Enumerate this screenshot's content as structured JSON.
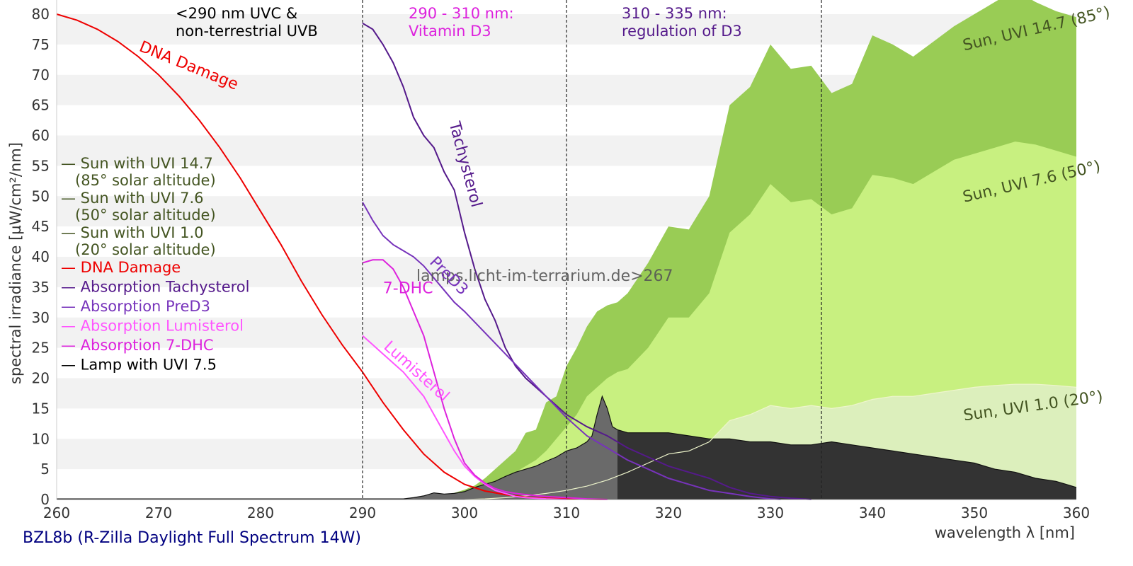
{
  "chart_data": {
    "type": "area",
    "xlabel": "wavelength λ [nm]",
    "ylabel": "spectral irradiance [µW/cm²/nm]",
    "xlim": [
      260,
      360
    ],
    "ylim": [
      0,
      80
    ],
    "x_ticks": [
      260,
      270,
      280,
      290,
      300,
      310,
      320,
      330,
      340,
      350,
      360
    ],
    "y_ticks": [
      0,
      5,
      10,
      15,
      20,
      25,
      30,
      35,
      40,
      45,
      50,
      55,
      60,
      65,
      70,
      75,
      80
    ],
    "grid": "horizontal bands",
    "legend_position": "left",
    "caption": "BZL8b (R-Zilla Daylight Full Spectrum 14W)",
    "watermark": "lamps.licht-im-terrarium.de>267",
    "colors": {
      "sun_14_7": "#99cc55",
      "sun_7_6": "#c8f080",
      "sun_1_0": "#dcefbc",
      "dna": "#ee0000",
      "tachysterol": "#551a8b",
      "pred3": "#7733bb",
      "lumisterol": "#ff55ff",
      "dhc": "#dd22dd",
      "lamp": "#333333",
      "lamp_light": "#6a6a6a",
      "legend_sun": "#445522",
      "caption": "#000080"
    },
    "regions": [
      {
        "x": 290,
        "label": "<290 nm UVC &\nnon-terrestrial UVB",
        "color": "#000000"
      },
      {
        "x": 310,
        "label": "290 - 310 nm:\nVitamin D3",
        "color": "#dd22dd"
      },
      {
        "x": 335,
        "label": "310 - 335 nm:\nregulation of D3",
        "color": "#551a8b"
      }
    ],
    "legend": [
      {
        "text": "— Sun with UVI 14.7\n   (85° solar altitude)",
        "color": "#445522"
      },
      {
        "text": "— Sun with UVI 7.6\n   (50° solar altitude)",
        "color": "#445522"
      },
      {
        "text": "— Sun with UVI 1.0\n   (20° solar altitude)",
        "color": "#445522"
      },
      {
        "text": "— DNA Damage",
        "color": "#ee0000"
      },
      {
        "text": "— Absorption Tachysterol",
        "color": "#551a8b"
      },
      {
        "text": "— Absorption PreD3",
        "color": "#7733bb"
      },
      {
        "text": "— Absorption Lumisterol",
        "color": "#ff55ff"
      },
      {
        "text": "— Absorption 7-DHC",
        "color": "#dd22dd"
      },
      {
        "text": "— Lamp with UVI 7.5",
        "color": "#000000"
      }
    ],
    "annotations": [
      {
        "text": "DNA Damage",
        "x": 268,
        "y": 74,
        "rotate": 22,
        "color": "#ee0000"
      },
      {
        "text": "Tachysterol",
        "x": 298.5,
        "y": 62,
        "rotate": 75,
        "color": "#551a8b"
      },
      {
        "text": "PreD3",
        "x": 296.5,
        "y": 39,
        "rotate": 45,
        "color": "#7733bb"
      },
      {
        "text": "7-DHC",
        "x": 292,
        "y": 34,
        "rotate": 0,
        "color": "#dd22dd"
      },
      {
        "text": "Lumisterol",
        "x": 292,
        "y": 25,
        "rotate": 42,
        "color": "#ff55ff"
      },
      {
        "text": "Sun, UVI 14.7 (85°)",
        "x": 349,
        "y": 74,
        "rotate": -13,
        "color": "#445522"
      },
      {
        "text": "Sun, UVI 7.6 (50°)",
        "x": 349,
        "y": 49,
        "rotate": -13,
        "color": "#445522"
      },
      {
        "text": "Sun, UVI 1.0 (20°)",
        "x": 349,
        "y": 13,
        "rotate": -8,
        "color": "#445522"
      }
    ],
    "series": [
      {
        "name": "Sun with UVI 14.7",
        "kind": "area",
        "x": [
          294,
          295,
          296,
          297,
          298,
          299,
          300,
          301,
          302,
          303,
          304,
          305,
          306,
          307,
          308,
          309,
          310,
          311,
          312,
          313,
          314,
          315,
          316,
          318,
          320,
          322,
          324,
          326,
          328,
          330,
          332,
          334,
          336,
          338,
          340,
          342,
          344,
          346,
          348,
          350,
          352,
          354,
          356,
          358,
          360
        ],
        "y": [
          0,
          0.1,
          0.2,
          0.4,
          0.7,
          1.1,
          1.6,
          2.3,
          3.5,
          5,
          6.5,
          8,
          11,
          11.5,
          16,
          17,
          22,
          25,
          28.5,
          31,
          32,
          32.5,
          34,
          39,
          45,
          44.5,
          50,
          65,
          68,
          75,
          71,
          71.5,
          67,
          68.5,
          76.5,
          75,
          73,
          75.5,
          78,
          80,
          82,
          84,
          82,
          80.5,
          79.5
        ]
      },
      {
        "name": "Sun with UVI 7.6",
        "kind": "area",
        "x": [
          297,
          298,
          299,
          300,
          301,
          302,
          303,
          304,
          305,
          306,
          307,
          308,
          309,
          310,
          311,
          312,
          313,
          314,
          315,
          316,
          318,
          320,
          322,
          324,
          326,
          328,
          330,
          332,
          334,
          336,
          338,
          340,
          342,
          344,
          346,
          348,
          350,
          352,
          354,
          356,
          358,
          360
        ],
        "y": [
          0,
          0.1,
          0.3,
          0.6,
          1,
          1.6,
          2.5,
          3.5,
          4.5,
          5.5,
          6.5,
          8,
          10,
          12,
          14,
          17,
          18.5,
          20,
          21,
          21.5,
          25,
          30,
          30,
          34,
          44,
          47,
          52,
          49,
          49.5,
          47,
          48,
          53.5,
          53,
          52,
          54,
          56,
          57,
          58,
          59,
          58.5,
          57.5,
          56.5
        ]
      },
      {
        "name": "Sun with UVI 1.0",
        "kind": "area",
        "x": [
          300,
          302,
          304,
          306,
          308,
          310,
          312,
          314,
          316,
          318,
          320,
          322,
          324,
          326,
          328,
          330,
          332,
          334,
          336,
          338,
          340,
          342,
          344,
          346,
          348,
          350,
          352,
          354,
          356,
          358,
          360
        ],
        "y": [
          0,
          0.1,
          0.3,
          0.6,
          1,
          1.5,
          2.2,
          3.2,
          4.5,
          6,
          7.5,
          8,
          9.5,
          13,
          14,
          15.5,
          15,
          15.5,
          15,
          15.5,
          16.5,
          17,
          17,
          17.5,
          18,
          18.5,
          18.8,
          19,
          19,
          18.8,
          18.5
        ]
      },
      {
        "name": "Lamp with UVI 7.5",
        "kind": "area",
        "x": [
          260,
          294,
          295,
          296,
          297,
          298,
          299,
          300,
          301,
          302,
          303,
          304,
          305,
          306,
          307,
          308,
          309,
          310,
          311,
          312,
          312.5,
          313,
          313.5,
          314,
          314.5,
          315,
          316,
          318,
          320,
          322,
          324,
          326,
          328,
          330,
          332,
          334,
          336,
          338,
          340,
          342,
          344,
          346,
          348,
          350,
          352,
          354,
          356,
          358,
          359,
          360
        ],
        "y": [
          0.1,
          0.1,
          0.3,
          0.6,
          1.1,
          0.9,
          1,
          1.3,
          2,
          2.5,
          3,
          3.8,
          4.5,
          5,
          5.5,
          6.3,
          7,
          8,
          8.5,
          9.5,
          10.5,
          14,
          17,
          15,
          12,
          11.5,
          11,
          11,
          11,
          10.5,
          10,
          10,
          9.5,
          9.5,
          9,
          9,
          9.5,
          9,
          8.5,
          8,
          7.5,
          7,
          6.5,
          6,
          5,
          4.5,
          3.5,
          3,
          2.5,
          2
        ]
      },
      {
        "name": "DNA Damage",
        "kind": "line",
        "x": [
          260,
          262,
          264,
          266,
          268,
          270,
          272,
          274,
          276,
          278,
          280,
          282,
          284,
          286,
          288,
          290,
          292,
          294,
          296,
          298,
          300,
          302,
          304,
          306,
          308,
          310,
          312,
          314
        ],
        "y": [
          80,
          79,
          77.5,
          75.5,
          73,
          70,
          66.5,
          62.5,
          58,
          53,
          47.5,
          42,
          36,
          30.5,
          25.5,
          21,
          16,
          11.5,
          7.5,
          4.5,
          2.5,
          1.4,
          0.8,
          0.4,
          0.2,
          0.1,
          0.05,
          0
        ]
      },
      {
        "name": "Absorption Tachysterol",
        "kind": "line",
        "x": [
          290,
          291,
          292,
          293,
          294,
          295,
          296,
          297,
          298,
          299,
          300,
          301,
          302,
          303,
          304,
          305,
          306,
          308,
          310,
          312,
          314,
          316,
          318,
          320,
          322,
          324,
          326,
          328,
          330,
          332,
          334
        ],
        "y": [
          78.5,
          77.5,
          75,
          72,
          68,
          63,
          60,
          58,
          54,
          51,
          44,
          38,
          33,
          29.5,
          25,
          22,
          20,
          17,
          14,
          12,
          10.5,
          8.5,
          7,
          5.5,
          4.5,
          3.5,
          2,
          1,
          0.5,
          0.2,
          0
        ]
      },
      {
        "name": "Absorption PreD3",
        "kind": "line",
        "x": [
          290,
          291,
          292,
          293,
          294,
          295,
          296,
          297,
          298,
          299,
          300,
          302,
          304,
          306,
          308,
          310,
          312,
          314,
          316,
          318,
          320,
          322,
          324,
          326,
          328,
          330,
          331
        ],
        "y": [
          49,
          46,
          43.5,
          42,
          41,
          40,
          38.5,
          36.5,
          34.5,
          32.5,
          31,
          27.5,
          24,
          20.5,
          17,
          13.5,
          10.5,
          8.5,
          6.5,
          5,
          3.5,
          2.5,
          1.5,
          1,
          0.5,
          0.1,
          0
        ]
      },
      {
        "name": "Absorption Lumisterol",
        "kind": "line",
        "x": [
          290,
          291,
          292,
          293,
          294,
          295,
          296,
          297,
          298,
          299,
          300,
          301,
          302,
          303,
          304,
          305,
          306,
          308,
          310
        ],
        "y": [
          27,
          25.5,
          24,
          22.5,
          21,
          19,
          17,
          14,
          11,
          8,
          5.5,
          3.8,
          2.5,
          1.5,
          1,
          0.5,
          0.3,
          0.1,
          0
        ]
      },
      {
        "name": "Absorption 7-DHC",
        "kind": "line",
        "x": [
          290,
          291,
          292,
          293,
          294,
          295,
          296,
          297,
          298,
          299,
          300,
          301,
          302,
          303,
          304,
          305,
          306,
          308,
          310,
          312,
          314
        ],
        "y": [
          39,
          39.5,
          39.5,
          38,
          35,
          31,
          27,
          21,
          15,
          10,
          6,
          4,
          2.7,
          1.8,
          1.3,
          1,
          0.8,
          0.5,
          0.3,
          0.1,
          0
        ]
      }
    ]
  }
}
